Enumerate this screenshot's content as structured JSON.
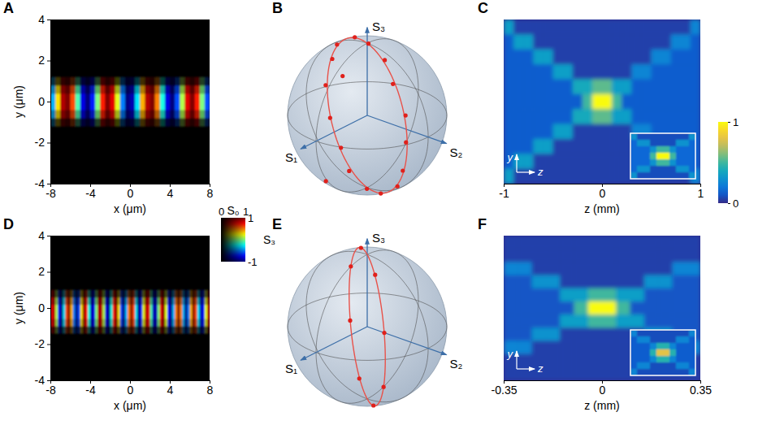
{
  "chart_data": [
    {
      "type": "heatmap",
      "panel": "A",
      "x_label": "x (μm)",
      "y_label": "y (μm)",
      "xlim": [
        -8,
        8
      ],
      "ylim": [
        -4,
        4
      ],
      "xticks": [
        -8,
        -4,
        0,
        4,
        8
      ],
      "yticks": [
        -4,
        -2,
        0,
        2,
        4
      ],
      "x_bins": [
        -8,
        -7.5,
        -7,
        -6.5,
        -6,
        -5.5,
        -5,
        -4.5,
        -4,
        -3.5,
        -3,
        -2.5,
        -2,
        -1.5,
        -1,
        -0.5,
        0,
        0.5,
        1,
        1.5,
        2,
        2.5,
        3,
        3.5,
        4,
        4.5,
        5,
        5.5,
        6,
        6.5,
        7,
        7.5,
        8
      ],
      "y_bins": [
        -1.2,
        -0.8,
        -0.4,
        0,
        0.4,
        0.8,
        1.2
      ],
      "s3": [
        -0.4,
        0.3,
        0.9,
        1,
        0.6,
        -0.1,
        -0.8,
        -1,
        -0.7,
        0,
        0.7,
        1,
        0.8,
        0.2,
        -0.5,
        -1,
        -0.9,
        -0.3,
        0.4,
        0.9,
        1,
        0.5,
        -0.2,
        -0.8,
        -1,
        -0.6,
        0.1,
        0.8,
        1,
        0.7,
        0,
        -0.6
      ],
      "s0": [
        0.25,
        0.7,
        1,
        1,
        0.7,
        0.25
      ],
      "color_bar": {
        "s0_label": "S₀",
        "s3_label": "S₃",
        "s0_lim": [
          0,
          1
        ],
        "s0_ticks": [
          0,
          1
        ],
        "s3_lim": [
          -1,
          1
        ],
        "s3_ticks": [
          -1,
          1
        ]
      }
    },
    {
      "type": "sphere",
      "panel": "B",
      "axis_labels": [
        "S₁",
        "S₂",
        "S₃"
      ],
      "points": [
        [
          0,
          0.02,
          1
        ],
        [
          -0.15,
          -0.33,
          0.93
        ],
        [
          -0.22,
          -0.68,
          0.7
        ],
        [
          -0.33,
          -0.85,
          0.41
        ],
        [
          -0.32,
          -0.95,
          0.02
        ],
        [
          -0.3,
          -0.86,
          -0.4
        ],
        [
          -0.25,
          -0.64,
          -0.73
        ],
        [
          -0.1,
          -0.38,
          -0.92
        ],
        [
          0.03,
          0.02,
          -1
        ],
        [
          0.14,
          0.34,
          -0.93
        ],
        [
          0.22,
          0.68,
          -0.7
        ],
        [
          0.33,
          0.86,
          -0.39
        ],
        [
          0.35,
          0.93,
          0.03
        ],
        [
          0.3,
          0.88,
          0.37
        ],
        [
          0.26,
          0.64,
          0.72
        ],
        [
          0.11,
          0.38,
          0.92
        ],
        [
          0.6,
          0.1,
          0.79
        ],
        [
          0.45,
          -0.3,
          -0.84
        ]
      ],
      "orbit_normal": [
        0.94,
        -0.34,
        0
      ]
    },
    {
      "type": "heatmap",
      "panel": "C",
      "x_label": "z (mm)",
      "arrow_labels": [
        "y",
        "z"
      ],
      "xlim": [
        -1,
        1
      ],
      "xticks": [
        -1,
        0,
        1
      ],
      "tick_labels": "x",
      "x_bins": [
        -1,
        -0.9,
        -0.8,
        -0.7,
        -0.6,
        -0.5,
        -0.4,
        -0.3,
        -0.2,
        -0.1,
        0,
        0.1,
        0.2,
        0.3,
        0.4,
        0.5,
        0.6,
        0.7,
        0.8,
        0.9,
        1
      ],
      "intensity": [
        [
          0.35,
          0.05,
          0.05,
          0.05,
          0.05,
          0.05,
          0.05,
          0.05,
          0.05,
          0.05,
          0.05,
          0.05,
          0.05,
          0.05,
          0.05,
          0.05,
          0.05,
          0.05,
          0.05,
          0.25
        ],
        [
          0.12,
          0.35,
          0.35,
          0.05,
          0.05,
          0.05,
          0.05,
          0.05,
          0.05,
          0.05,
          0.05,
          0.05,
          0.05,
          0.05,
          0.05,
          0.05,
          0.05,
          0.25,
          0.25,
          0.12
        ],
        [
          0.12,
          0.12,
          0.12,
          0.35,
          0.35,
          0.05,
          0.05,
          0.05,
          0.05,
          0.05,
          0.05,
          0.05,
          0.05,
          0.05,
          0.05,
          0.25,
          0.25,
          0.12,
          0.12,
          0.12
        ],
        [
          0.12,
          0.12,
          0.12,
          0.12,
          0.12,
          0.35,
          0.35,
          0.05,
          0.05,
          0.05,
          0.05,
          0.05,
          0.05,
          0.25,
          0.25,
          0.12,
          0.12,
          0.12,
          0.12,
          0.12
        ],
        [
          0.12,
          0.12,
          0.12,
          0.12,
          0.12,
          0.12,
          0.12,
          0.4,
          0.4,
          0.55,
          0.55,
          0.35,
          0.35,
          0.12,
          0.12,
          0.12,
          0.12,
          0.12,
          0.12,
          0.12
        ],
        [
          0.12,
          0.12,
          0.12,
          0.12,
          0.12,
          0.12,
          0.12,
          0.12,
          0.5,
          1,
          1,
          0.5,
          0.12,
          0.12,
          0.12,
          0.12,
          0.12,
          0.12,
          0.12,
          0.12
        ],
        [
          0.12,
          0.12,
          0.12,
          0.12,
          0.12,
          0.12,
          0.12,
          0.4,
          0.4,
          0.55,
          0.55,
          0.35,
          0.35,
          0.12,
          0.12,
          0.12,
          0.12,
          0.12,
          0.12,
          0.12
        ],
        [
          0.12,
          0.12,
          0.12,
          0.12,
          0.12,
          0.35,
          0.35,
          0.05,
          0.05,
          0.05,
          0.05,
          0.05,
          0.05,
          0.25,
          0.25,
          0.12,
          0.12,
          0.12,
          0.12,
          0.12
        ],
        [
          0.12,
          0.12,
          0.12,
          0.35,
          0.35,
          0.05,
          0.05,
          0.05,
          0.05,
          0.05,
          0.05,
          0.05,
          0.05,
          0.05,
          0.05,
          0.25,
          0.25,
          0.12,
          0.12,
          0.12
        ],
        [
          0.12,
          0.35,
          0.35,
          0.05,
          0.05,
          0.05,
          0.05,
          0.05,
          0.05,
          0.05,
          0.05,
          0.05,
          0.05,
          0.05,
          0.05,
          0.05,
          0.05,
          0.25,
          0.25,
          0.12
        ],
        [
          0.35,
          0.05,
          0.05,
          0.05,
          0.05,
          0.05,
          0.05,
          0.05,
          0.05,
          0.05,
          0.05,
          0.05,
          0.05,
          0.05,
          0.05,
          0.05,
          0.05,
          0.05,
          0.05,
          0.25
        ]
      ],
      "inset_intensity": [
        [
          0.3,
          0.08,
          0.08,
          0.08,
          0.08,
          0.08,
          0.08,
          0.08,
          0.08,
          0.3
        ],
        [
          0.15,
          0.3,
          0.3,
          0.08,
          0.08,
          0.08,
          0.08,
          0.3,
          0.3,
          0.15
        ],
        [
          0.15,
          0.15,
          0.15,
          0.3,
          0.5,
          0.5,
          0.3,
          0.15,
          0.15,
          0.15
        ],
        [
          0.15,
          0.15,
          0.15,
          0.5,
          1,
          1,
          0.5,
          0.15,
          0.15,
          0.15
        ],
        [
          0.15,
          0.15,
          0.15,
          0.3,
          0.5,
          0.5,
          0.3,
          0.15,
          0.15,
          0.15
        ],
        [
          0.15,
          0.3,
          0.3,
          0.08,
          0.08,
          0.08,
          0.08,
          0.3,
          0.3,
          0.15
        ],
        [
          0.3,
          0.08,
          0.08,
          0.08,
          0.08,
          0.08,
          0.08,
          0.08,
          0.08,
          0.3
        ]
      ],
      "color_bar": {
        "lim": [
          0,
          1
        ],
        "ticks": [
          0,
          1
        ]
      }
    },
    {
      "type": "heatmap",
      "panel": "D",
      "x_label": "x (μm)",
      "y_label": "y (μm)",
      "xlim": [
        -8,
        8
      ],
      "ylim": [
        -4,
        4
      ],
      "xticks": [
        -8,
        -4,
        0,
        4,
        8
      ],
      "yticks": [
        -4,
        -2,
        0,
        2,
        4
      ],
      "x_bins": [
        -8,
        -7.75,
        -7.5,
        -7.25,
        -7,
        -6.75,
        -6.5,
        -6.25,
        -6,
        -5.75,
        -5.5,
        -5.25,
        -5,
        -4.75,
        -4.5,
        -4.25,
        -4,
        -3.75,
        -3.5,
        -3.25,
        -3,
        -2.75,
        -2.5,
        -2.25,
        -2,
        -1.75,
        -1.5,
        -1.25,
        -1,
        -0.75,
        -0.5,
        -0.25,
        0,
        0.25,
        0.5,
        0.75,
        1,
        1.25,
        1.5,
        1.75,
        2,
        2.25,
        2.5,
        2.75,
        3,
        3.25,
        3.5,
        3.75,
        4,
        4.25,
        4.5,
        4.75,
        5,
        5.25,
        5.5,
        5.75,
        6,
        6.25,
        6.5,
        6.75,
        7,
        7.25,
        7.5,
        7.75,
        8
      ],
      "y_bins": [
        -1.4,
        -1,
        -0.6,
        -0.2,
        0.2,
        0.6,
        1
      ],
      "s3": [
        0.8,
        0.9,
        0.1,
        -0.7,
        -1,
        -0.3,
        0.6,
        1,
        0.4,
        -0.5,
        -1,
        -0.6,
        0.3,
        1,
        0.7,
        -0.2,
        -0.9,
        -0.8,
        0,
        0.9,
        0.9,
        0.1,
        -0.8,
        -1,
        -0.2,
        0.7,
        1,
        0.3,
        -0.6,
        -1,
        -0.4,
        0.5,
        1,
        0.6,
        -0.3,
        -1,
        -0.7,
        0.2,
        0.9,
        0.8,
        -0.1,
        -0.9,
        -0.9,
        0,
        0.8,
        1,
        0.2,
        -0.7,
        -1,
        -0.4,
        0.5,
        1,
        0.5,
        -0.4,
        -1,
        -0.5,
        0.4,
        1,
        0.6,
        -0.3,
        -0.9,
        -0.7,
        0.2,
        0.9
      ],
      "s0": [
        0.3,
        0.8,
        1,
        1,
        0.7,
        0.3
      ]
    },
    {
      "type": "sphere",
      "panel": "E",
      "axis_labels": [
        "S₁",
        "S₂",
        "S₃"
      ],
      "points": [
        [
          -0.2,
          -0.27,
          0.94
        ],
        [
          -0.55,
          -0.73,
          0.42
        ],
        [
          -0.56,
          -0.75,
          -0.34
        ],
        [
          -0.25,
          -0.34,
          -0.91
        ],
        [
          0.2,
          0.27,
          -0.94
        ],
        [
          0.55,
          0.73,
          -0.42
        ],
        [
          0.56,
          0.75,
          0.34
        ],
        [
          0.25,
          0.34,
          0.91
        ]
      ],
      "orbit_normal": [
        0.8,
        -0.6,
        0
      ]
    },
    {
      "type": "heatmap",
      "panel": "F",
      "x_label": "z (mm)",
      "arrow_labels": [
        "y",
        "z"
      ],
      "xlim": [
        -0.35,
        0.35
      ],
      "xticks": [
        -0.35,
        0,
        0.35
      ],
      "tick_labels": "x",
      "x_bins": [
        -0.35,
        -0.3,
        -0.25,
        -0.2,
        -0.15,
        -0.1,
        -0.05,
        0,
        0.05,
        0.1,
        0.15,
        0.2,
        0.25,
        0.3,
        0.35
      ],
      "intensity": [
        [
          0.05,
          0.05,
          0.05,
          0.05,
          0.05,
          0.05,
          0.05,
          0.05,
          0.05,
          0.05,
          0.05,
          0.05,
          0.05,
          0.05
        ],
        [
          0.05,
          0.05,
          0.05,
          0.05,
          0.05,
          0.05,
          0.05,
          0.05,
          0.05,
          0.05,
          0.05,
          0.05,
          0.05,
          0.05
        ],
        [
          0.25,
          0.25,
          0.05,
          0.05,
          0.05,
          0.05,
          0.05,
          0.05,
          0.05,
          0.05,
          0.05,
          0.05,
          0.25,
          0.25
        ],
        [
          0.1,
          0.1,
          0.3,
          0.3,
          0.05,
          0.05,
          0.05,
          0.05,
          0.05,
          0.05,
          0.3,
          0.3,
          0.1,
          0.1
        ],
        [
          0.1,
          0.1,
          0.1,
          0.1,
          0.35,
          0.35,
          0.5,
          0.5,
          0.35,
          0.35,
          0.1,
          0.1,
          0.1,
          0.1
        ],
        [
          0.1,
          0.1,
          0.1,
          0.1,
          0.1,
          0.5,
          1,
          1,
          0.5,
          0.1,
          0.1,
          0.1,
          0.1,
          0.1
        ],
        [
          0.1,
          0.1,
          0.1,
          0.1,
          0.35,
          0.35,
          0.5,
          0.5,
          0.35,
          0.35,
          0.1,
          0.1,
          0.1,
          0.1
        ],
        [
          0.1,
          0.1,
          0.3,
          0.3,
          0.05,
          0.05,
          0.05,
          0.05,
          0.05,
          0.05,
          0.3,
          0.3,
          0.1,
          0.1
        ],
        [
          0.25,
          0.25,
          0.05,
          0.05,
          0.05,
          0.05,
          0.05,
          0.05,
          0.05,
          0.05,
          0.05,
          0.05,
          0.25,
          0.25
        ],
        [
          0.05,
          0.05,
          0.05,
          0.05,
          0.05,
          0.05,
          0.05,
          0.05,
          0.05,
          0.05,
          0.05,
          0.05,
          0.05,
          0.05
        ],
        [
          0.05,
          0.05,
          0.05,
          0.05,
          0.05,
          0.05,
          0.05,
          0.05,
          0.05,
          0.05,
          0.05,
          0.05,
          0.05,
          0.05
        ]
      ],
      "inset_intensity": [
        [
          0.25,
          0.08,
          0.08,
          0.08,
          0.08,
          0.08,
          0.08,
          0.08,
          0.08,
          0.25
        ],
        [
          0.12,
          0.25,
          0.25,
          0.08,
          0.08,
          0.08,
          0.08,
          0.25,
          0.25,
          0.12
        ],
        [
          0.12,
          0.12,
          0.12,
          0.25,
          0.45,
          0.45,
          0.25,
          0.12,
          0.12,
          0.12
        ],
        [
          0.12,
          0.12,
          0.12,
          0.45,
          0.8,
          0.8,
          0.45,
          0.12,
          0.12,
          0.12
        ],
        [
          0.12,
          0.12,
          0.12,
          0.25,
          0.45,
          0.45,
          0.25,
          0.12,
          0.12,
          0.12
        ],
        [
          0.12,
          0.25,
          0.25,
          0.08,
          0.08,
          0.08,
          0.08,
          0.25,
          0.25,
          0.12
        ],
        [
          0.25,
          0.08,
          0.08,
          0.08,
          0.08,
          0.08,
          0.08,
          0.08,
          0.08,
          0.25
        ]
      ]
    }
  ]
}
